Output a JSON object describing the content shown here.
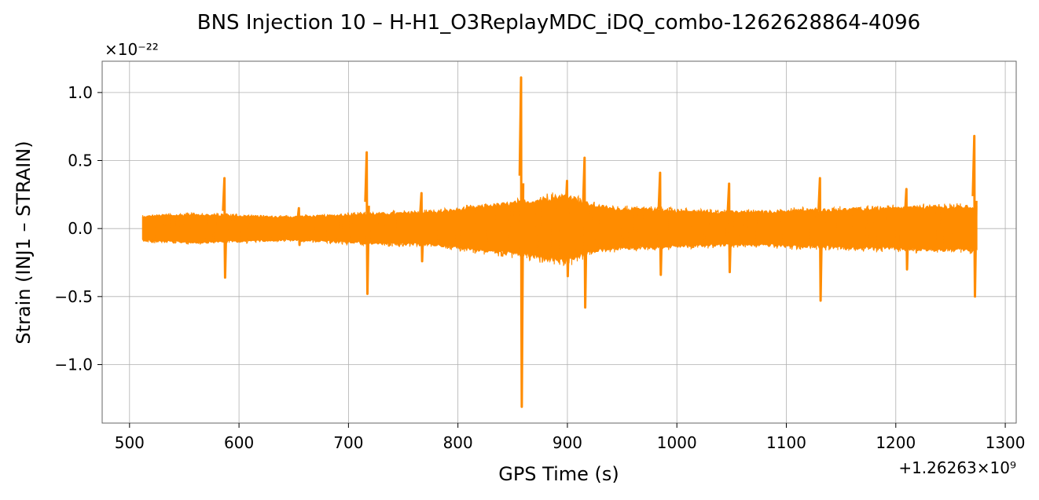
{
  "chart_data": {
    "type": "line",
    "title": "BNS Injection 10 – H-H1_O3ReplayMDC_iDQ_combo-1262628864-4096",
    "xlabel": "GPS Time (s)",
    "ylabel": "Strain (INJ1 – STRAIN)",
    "x_offset_label": "+1.26263×10⁹",
    "y_scale_label": "×10⁻²²",
    "xlim": [
      475,
      1310
    ],
    "ylim": [
      -1.43,
      1.23
    ],
    "x_ticks": [
      500,
      600,
      700,
      800,
      900,
      1000,
      1100,
      1200,
      1300
    ],
    "x_tick_labels": [
      "500",
      "600",
      "700",
      "800",
      "900",
      "1000",
      "1100",
      "1200",
      "1300"
    ],
    "y_ticks": [
      -1.0,
      -0.5,
      0.0,
      0.5,
      1.0
    ],
    "y_tick_labels": [
      "−1.0",
      "−0.5",
      "0.0",
      "0.5",
      "1.0"
    ],
    "grid": true,
    "legend": null,
    "series": [
      {
        "color": "#ff8c00",
        "x_range": [
          512,
          1274
        ],
        "envelope": {
          "x": [
            512,
            520,
            560,
            600,
            640,
            680,
            700,
            740,
            780,
            800,
            820,
            850,
            870,
            880,
            900,
            920,
            940,
            980,
            1000,
            1040,
            1080,
            1100,
            1150,
            1200,
            1230,
            1274
          ],
          "upper": [
            0.09,
            0.1,
            0.11,
            0.1,
            0.09,
            0.1,
            0.11,
            0.12,
            0.13,
            0.15,
            0.17,
            0.2,
            0.22,
            0.24,
            0.26,
            0.19,
            0.16,
            0.15,
            0.14,
            0.13,
            0.13,
            0.14,
            0.15,
            0.16,
            0.17,
            0.17
          ],
          "lower": [
            -0.09,
            -0.1,
            -0.11,
            -0.1,
            -0.09,
            -0.1,
            -0.11,
            -0.12,
            -0.13,
            -0.15,
            -0.17,
            -0.2,
            -0.22,
            -0.24,
            -0.26,
            -0.19,
            -0.16,
            -0.15,
            -0.14,
            -0.13,
            -0.13,
            -0.14,
            -0.15,
            -0.16,
            -0.17,
            -0.17
          ]
        },
        "spikes": [
          {
            "x": 587,
            "max": 0.37,
            "min": -0.36
          },
          {
            "x": 655,
            "max": 0.15,
            "min": -0.12
          },
          {
            "x": 717,
            "max": 0.56,
            "min": -0.48
          },
          {
            "x": 767,
            "max": 0.26,
            "min": -0.24
          },
          {
            "x": 858,
            "max": 1.11,
            "min": -1.31
          },
          {
            "x": 900,
            "max": 0.35,
            "min": -0.35
          },
          {
            "x": 916,
            "max": 0.52,
            "min": -0.58
          },
          {
            "x": 985,
            "max": 0.41,
            "min": -0.34
          },
          {
            "x": 1048,
            "max": 0.33,
            "min": -0.32
          },
          {
            "x": 1131,
            "max": 0.37,
            "min": -0.53
          },
          {
            "x": 1210,
            "max": 0.29,
            "min": -0.3
          },
          {
            "x": 1272,
            "max": 0.68,
            "min": -0.5
          }
        ]
      }
    ]
  }
}
